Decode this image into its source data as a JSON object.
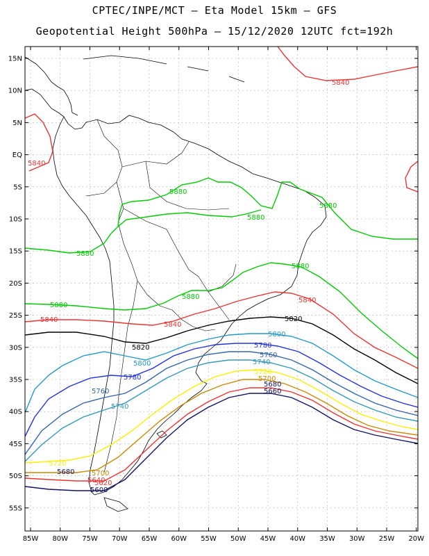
{
  "title_line1": "CPTEC/INPE/MCT –  Eta Model 15km – GFS",
  "title_line2": "Geopotential Height 500hPa – 15/12/2020 12UTC fct=192h",
  "lat_labels": [
    "15N",
    "10N",
    "5N",
    "EQ",
    "5S",
    "10S",
    "15S",
    "20S",
    "25S",
    "30S",
    "35S",
    "40S",
    "45S",
    "50S",
    "55S"
  ],
  "lon_labels": [
    "85W",
    "80W",
    "75W",
    "70W",
    "65W",
    "60W",
    "55W",
    "50W",
    "45W",
    "40W",
    "35W",
    "30W",
    "25W",
    "20W"
  ],
  "colors": {
    "c5880": "#00cc00",
    "c5840": "#ee3333",
    "c5820": "#000000",
    "c5800": "#2299cc",
    "c5780": "#2233dd",
    "c5760": "#3366aa",
    "c5740": "#3399bb",
    "c5720": "#ffee00",
    "c5700": "#cc8800",
    "c5680": "#ee3333",
    "c5660": "#111166",
    "c5640": "#111166",
    "grid": "#999999",
    "coast": "#000000"
  },
  "contour_labels": {
    "green": "5880",
    "red": "5840",
    "black": "5820",
    "s5800": "5800",
    "s5780": "5780",
    "s5760": "5760",
    "s5740": "5740",
    "s5720": "5720",
    "s5700": "5700",
    "s5680": "5680",
    "s5660": "5660",
    "s5640": "5640",
    "s5620": "5620",
    "s5600": "5600"
  }
}
